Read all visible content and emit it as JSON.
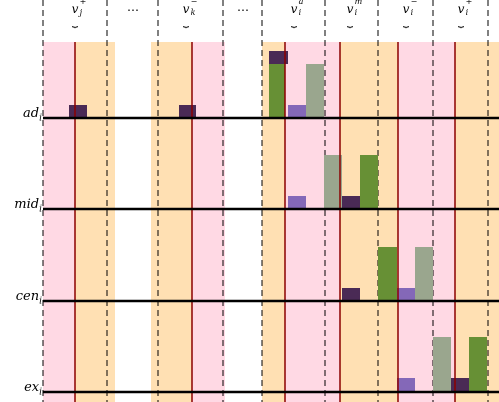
{
  "colors": {
    "pink": "#ffd9e4",
    "orange": "#ffe0b3",
    "red_line": "#8b0000",
    "dark_purple": "#4a2a55",
    "light_purple": "#8468b8",
    "green": "#679035",
    "gray_green": "#9aa68e"
  },
  "columns": [
    {
      "type": "var",
      "base": "v",
      "sup": "+",
      "sub": "j"
    },
    {
      "type": "ellipsis",
      "text": "⋯"
    },
    {
      "type": "var",
      "base": "v",
      "sup": "−",
      "sub": "k"
    },
    {
      "type": "ellipsis",
      "text": "⋯"
    },
    {
      "type": "var",
      "base": "v",
      "sup": "a",
      "sub": "i"
    },
    {
      "type": "var",
      "base": "v",
      "sup": "m",
      "sub": "i"
    },
    {
      "type": "var",
      "base": "v",
      "sup": "−",
      "sub": "i"
    },
    {
      "type": "var",
      "base": "v",
      "sup": "+",
      "sub": "i"
    }
  ],
  "rows": [
    {
      "base": "ad",
      "sub": "i"
    },
    {
      "base": "mid",
      "sub": "i"
    },
    {
      "base": "cen",
      "sub": "i"
    },
    {
      "base": "ex",
      "sub": "i"
    }
  ],
  "brace_glyph": "⏟"
}
